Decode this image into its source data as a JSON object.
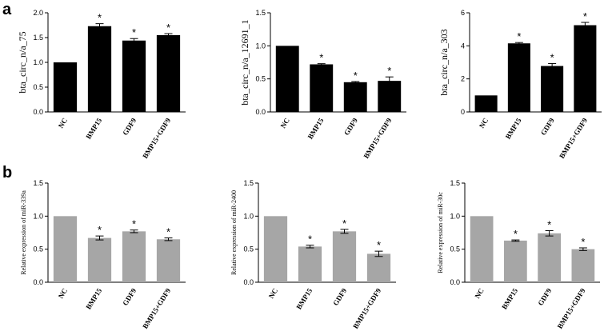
{
  "figure": {
    "panel_labels": [
      "a",
      "b"
    ]
  },
  "chart_data": [
    {
      "type": "bar",
      "row": "a",
      "ylabel": "bta_circ_n/a_75",
      "categories": [
        "NC",
        "BMP15",
        "GDF9",
        "BMP15+GDF9"
      ],
      "values": [
        1.0,
        1.73,
        1.44,
        1.55
      ],
      "errors": [
        0.0,
        0.05,
        0.04,
        0.03
      ],
      "significant": [
        "",
        "*",
        "*",
        "*"
      ],
      "ylim": [
        0,
        2.0
      ],
      "yticks": [
        "0.0",
        "0.5",
        "1.0",
        "1.5",
        "2.0"
      ],
      "bar_color": "#000000"
    },
    {
      "type": "bar",
      "row": "a",
      "ylabel": "bta_circ_n/a_12691_1",
      "categories": [
        "NC",
        "BMP15",
        "GDF9",
        "BMP15+GDF9"
      ],
      "values": [
        1.0,
        0.72,
        0.45,
        0.47
      ],
      "errors": [
        0.0,
        0.01,
        0.01,
        0.06
      ],
      "significant": [
        "",
        "*",
        "*",
        "*"
      ],
      "ylim": [
        0,
        1.5
      ],
      "yticks": [
        "0.0",
        "0.5",
        "1.0",
        "1.5"
      ],
      "bar_color": "#000000"
    },
    {
      "type": "bar",
      "row": "a",
      "ylabel": "bta_circ_n/a_303",
      "categories": [
        "NC",
        "BMP15",
        "GDF9",
        "BMP15+GDF9"
      ],
      "values": [
        1.0,
        4.15,
        2.78,
        5.25
      ],
      "errors": [
        0.0,
        0.05,
        0.15,
        0.17
      ],
      "significant": [
        "",
        "*",
        "*",
        "*"
      ],
      "ylim": [
        0,
        6
      ],
      "yticks": [
        "0",
        "2",
        "4",
        "6"
      ],
      "bar_color": "#000000"
    },
    {
      "type": "bar",
      "row": "b",
      "ylabel": "Relative expression of miR-339a",
      "categories": [
        "NC",
        "BMP15",
        "GDF9",
        "BMP15+GDF9"
      ],
      "values": [
        1.0,
        0.67,
        0.77,
        0.65
      ],
      "errors": [
        0.0,
        0.03,
        0.02,
        0.02
      ],
      "significant": [
        "",
        "*",
        "*",
        "*"
      ],
      "ylim": [
        0,
        1.5
      ],
      "yticks": [
        "0.0",
        "0.5",
        "1.0",
        "1.5"
      ],
      "bar_color": "#a6a6a6"
    },
    {
      "type": "bar",
      "row": "b",
      "ylabel": "Relative expression of miR-2400",
      "categories": [
        "NC",
        "BMP15",
        "GDF9",
        "BMP15+GDF9"
      ],
      "values": [
        1.0,
        0.54,
        0.77,
        0.43
      ],
      "errors": [
        0.0,
        0.02,
        0.03,
        0.04
      ],
      "significant": [
        "",
        "*",
        "*",
        "*"
      ],
      "ylim": [
        0,
        1.5
      ],
      "yticks": [
        "0.0",
        "0.5",
        "1.0",
        "1.5"
      ],
      "bar_color": "#a6a6a6"
    },
    {
      "type": "bar",
      "row": "b",
      "ylabel": "Relative expression of miR-30c",
      "categories": [
        "NC",
        "BMP15",
        "GDF9",
        "BMP15+GDF9"
      ],
      "values": [
        1.0,
        0.63,
        0.74,
        0.5
      ],
      "errors": [
        0.0,
        0.01,
        0.04,
        0.02
      ],
      "significant": [
        "",
        "*",
        "*",
        "*"
      ],
      "ylim": [
        0,
        1.5
      ],
      "yticks": [
        "0.0",
        "0.5",
        "1.0",
        "1.5"
      ],
      "bar_color": "#a6a6a6"
    }
  ]
}
